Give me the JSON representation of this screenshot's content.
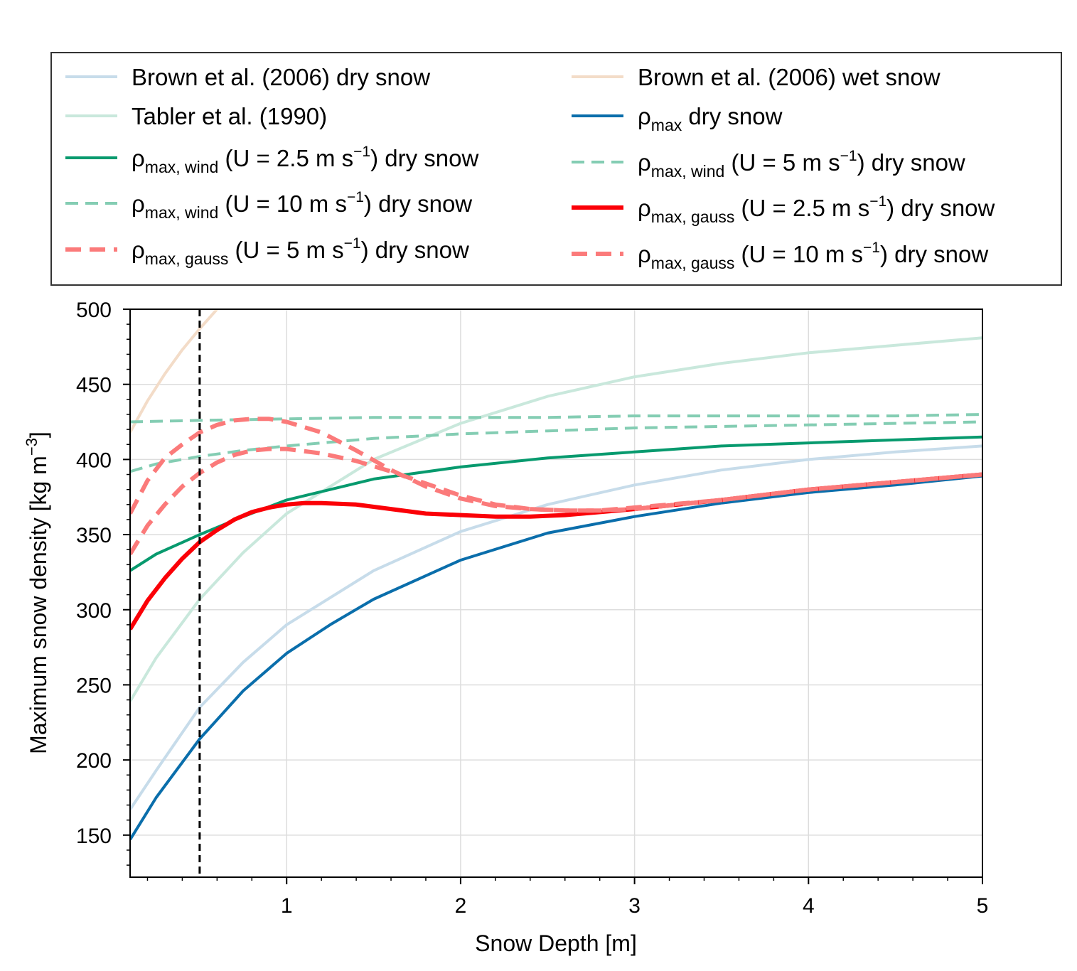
{
  "chart_data": {
    "type": "line",
    "title": "",
    "xlabel": "Snow Depth [m]",
    "ylabel_main": "Maximum snow density [kg m",
    "ylabel_sup": "−3",
    "ylabel_close": "]",
    "xlim": [
      0.1,
      5
    ],
    "ylim": [
      122,
      500
    ],
    "xticks": [
      {
        "value": 1,
        "label": "1"
      },
      {
        "value": 2,
        "label": "2"
      },
      {
        "value": 3,
        "label": "3"
      },
      {
        "value": 4,
        "label": "4"
      },
      {
        "value": 5,
        "label": "5"
      }
    ],
    "yticks": [
      {
        "value": 150,
        "label": "150"
      },
      {
        "value": 200,
        "label": "200"
      },
      {
        "value": 250,
        "label": "250"
      },
      {
        "value": 300,
        "label": "300"
      },
      {
        "value": 350,
        "label": "350"
      },
      {
        "value": 400,
        "label": "400"
      },
      {
        "value": 450,
        "label": "450"
      },
      {
        "value": 500,
        "label": "500"
      }
    ],
    "grid": true,
    "legend_position": "above plot, two columns",
    "vertical_reference_line": {
      "x": 0.5,
      "style": "dashed",
      "color": "#000000"
    },
    "series": [
      {
        "id": "brown_dry",
        "color": "#c7dcea",
        "dash": "none",
        "width": 4,
        "legend": {
          "parts": [
            {
              "t": "Brown et al. (2006) dry snow"
            }
          ]
        },
        "x": [
          0.1,
          0.25,
          0.5,
          0.75,
          1.0,
          1.5,
          2.0,
          2.5,
          3.0,
          3.5,
          4.0,
          4.5,
          5.0
        ],
        "y": [
          167,
          193,
          235,
          265,
          290,
          326,
          352,
          370,
          383,
          393,
          400,
          405,
          409
        ]
      },
      {
        "id": "brown_wet",
        "color": "#f3dcc8",
        "dash": "none",
        "width": 4,
        "legend": {
          "parts": [
            {
              "t": "Brown et al. (2006) wet snow"
            }
          ]
        },
        "x": [
          0.1,
          0.2,
          0.3,
          0.4,
          0.5,
          0.6
        ],
        "y": [
          418,
          439,
          457,
          473,
          487,
          500
        ]
      },
      {
        "id": "tabler",
        "color": "#c9e8dc",
        "dash": "none",
        "width": 4,
        "legend": {
          "parts": [
            {
              "t": "Tabler et al. (1990)"
            }
          ]
        },
        "x": [
          0.1,
          0.25,
          0.5,
          0.75,
          1.0,
          1.5,
          2.0,
          2.5,
          3.0,
          3.5,
          4.0,
          4.5,
          5.0
        ],
        "y": [
          239,
          268,
          307,
          338,
          364,
          400,
          424,
          442,
          455,
          464,
          471,
          476,
          481
        ]
      },
      {
        "id": "rho_max_dry",
        "color": "#0a6eab",
        "dash": "none",
        "width": 4,
        "legend": {
          "parts": [
            {
              "t": "ρ"
            },
            {
              "t": "max",
              "sub": true
            },
            {
              "t": " dry snow"
            }
          ]
        },
        "x": [
          0.1,
          0.25,
          0.5,
          0.75,
          1.0,
          1.25,
          1.5,
          2.0,
          2.5,
          3.0,
          3.5,
          4.0,
          4.5,
          5.0
        ],
        "y": [
          147,
          175,
          214,
          246,
          271,
          290,
          307,
          333,
          351,
          362,
          371,
          378,
          383,
          389
        ]
      },
      {
        "id": "wind_25",
        "color": "#079a6e",
        "dash": "none",
        "width": 4,
        "legend": {
          "parts": [
            {
              "t": "ρ"
            },
            {
              "t": "max, wind",
              "sub": true
            },
            {
              "t": " (U = 2.5 m s"
            },
            {
              "t": "−1",
              "sup": true
            },
            {
              "t": ") dry snow"
            }
          ]
        },
        "x": [
          0.1,
          0.25,
          0.5,
          0.75,
          1.0,
          1.5,
          2.0,
          2.5,
          3.0,
          3.5,
          4.0,
          4.5,
          5.0
        ],
        "y": [
          326,
          337,
          350,
          362,
          373,
          387,
          395,
          401,
          405,
          409,
          411,
          413,
          415
        ]
      },
      {
        "id": "wind_5",
        "color": "#84cdb3",
        "dash": "18,10",
        "width": 4,
        "legend": {
          "parts": [
            {
              "t": "ρ"
            },
            {
              "t": "max, wind",
              "sub": true
            },
            {
              "t": " (U = 5 m s"
            },
            {
              "t": "−1",
              "sup": true
            },
            {
              "t": ") dry snow"
            }
          ]
        },
        "x": [
          0.1,
          0.25,
          0.5,
          0.75,
          1.0,
          1.5,
          2.0,
          2.5,
          3.0,
          3.5,
          4.0,
          4.5,
          5.0
        ],
        "y": [
          392,
          397,
          402,
          406,
          409,
          414,
          417,
          419,
          421,
          422,
          423,
          424,
          425
        ]
      },
      {
        "id": "wind_10",
        "color": "#84cdb3",
        "dash": "18,10",
        "width": 4,
        "legend": {
          "parts": [
            {
              "t": "ρ"
            },
            {
              "t": "max, wind",
              "sub": true
            },
            {
              "t": " (U = 10 m s"
            },
            {
              "t": "−1",
              "sup": true
            },
            {
              "t": ") dry snow"
            }
          ]
        },
        "x": [
          0.1,
          0.5,
          1.0,
          1.5,
          2.0,
          2.5,
          3.0,
          3.5,
          4.0,
          4.5,
          5.0
        ],
        "y": [
          425,
          426,
          427,
          428,
          428,
          428,
          429,
          429,
          429,
          429,
          430
        ]
      },
      {
        "id": "gauss_25",
        "color": "#fb0007",
        "dash": "none",
        "width": 6,
        "legend": {
          "parts": [
            {
              "t": "ρ"
            },
            {
              "t": "max, gauss",
              "sub": true
            },
            {
              "t": " (U = 2.5 m s"
            },
            {
              "t": "−1",
              "sup": true
            },
            {
              "t": ") dry snow"
            }
          ]
        },
        "x": [
          0.1,
          0.2,
          0.3,
          0.4,
          0.5,
          0.6,
          0.7,
          0.8,
          0.9,
          1.0,
          1.1,
          1.2,
          1.4,
          1.6,
          1.8,
          2.0,
          2.2,
          2.4,
          2.6,
          2.8,
          3.0,
          3.5,
          4.0,
          4.5,
          5.0
        ],
        "y": [
          287,
          306,
          321,
          334,
          345,
          353,
          360,
          365,
          368,
          370,
          371,
          371,
          370,
          367,
          364,
          363,
          362,
          362,
          363,
          365,
          367,
          373,
          380,
          385,
          390
        ]
      },
      {
        "id": "gauss_5",
        "color": "#fb7a7a",
        "dash": "22,12",
        "width": 6,
        "legend": {
          "parts": [
            {
              "t": "ρ"
            },
            {
              "t": "max, gauss",
              "sub": true
            },
            {
              "t": " (U = 5 m s"
            },
            {
              "t": "−1",
              "sup": true
            },
            {
              "t": ") dry snow"
            }
          ]
        },
        "x": [
          0.1,
          0.2,
          0.3,
          0.4,
          0.5,
          0.6,
          0.7,
          0.8,
          0.9,
          1.0,
          1.2,
          1.4,
          1.6,
          1.8,
          2.0,
          2.2,
          2.4,
          2.6,
          2.8,
          3.0,
          3.5,
          4.0,
          4.5,
          5.0
        ],
        "y": [
          337,
          356,
          370,
          382,
          391,
          398,
          403,
          406,
          407,
          407,
          404,
          399,
          392,
          384,
          376,
          370,
          367,
          366,
          366,
          367,
          373,
          380,
          385,
          390
        ]
      },
      {
        "id": "gauss_10",
        "color": "#fb7a7a",
        "dash": "22,12",
        "width": 6,
        "legend": {
          "parts": [
            {
              "t": "ρ"
            },
            {
              "t": "max, gauss",
              "sub": true
            },
            {
              "t": " (U = 10 m s"
            },
            {
              "t": "−1",
              "sup": true
            },
            {
              "t": ") dry snow"
            }
          ]
        },
        "x": [
          0.1,
          0.2,
          0.3,
          0.4,
          0.5,
          0.6,
          0.7,
          0.8,
          0.9,
          1.0,
          1.2,
          1.4,
          1.6,
          1.8,
          2.0,
          2.2,
          2.4,
          2.6,
          2.8,
          3.0,
          3.5,
          4.0,
          4.5,
          5.0
        ],
        "y": [
          364,
          386,
          401,
          410,
          418,
          423,
          426,
          427,
          427,
          425,
          418,
          406,
          393,
          382,
          374,
          369,
          367,
          366,
          366,
          368,
          373,
          380,
          385,
          390
        ]
      }
    ],
    "legend_order": [
      "brown_dry",
      "brown_wet",
      "tabler",
      "rho_max_dry",
      "wind_25",
      "wind_5",
      "wind_10",
      "gauss_25",
      "gauss_5",
      "gauss_10"
    ]
  }
}
